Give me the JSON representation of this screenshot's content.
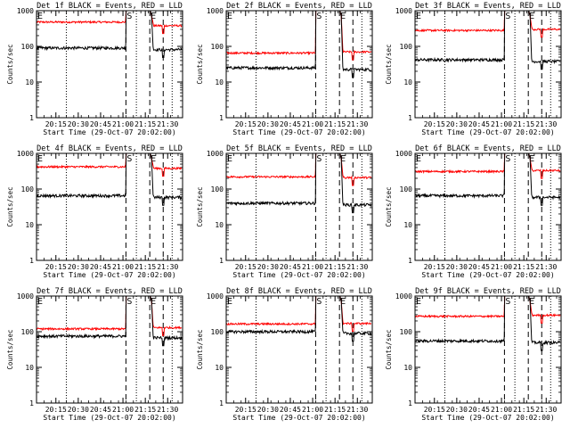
{
  "chart_data": {
    "type": "line",
    "layout": "3x3 grid",
    "x_tick_labels": [
      "20:15",
      "20:30",
      "20:45",
      "21:00",
      "21:15",
      "21:30"
    ],
    "x_range": [
      "20:02:00",
      "21:40:00"
    ],
    "y_scale": "log",
    "y_range": [
      1,
      1000
    ],
    "y_tick_labels": [
      "1",
      "10",
      "100",
      "1000"
    ],
    "ylabel": "Counts/sec",
    "xlabel": "Start Time (29-Oct-07 20:02:00)",
    "markers": [
      {
        "label": "E",
        "time": "20:02"
      },
      {
        "label": "S",
        "time": "21:02"
      },
      {
        "label": "E",
        "time": "21:18"
      }
    ],
    "dotted_lines": [
      "20:22",
      "21:09",
      "21:33"
    ],
    "dashed_lines": [
      "21:02",
      "21:18",
      "21:27"
    ],
    "series_colors": {
      "events": "#000000",
      "lld": "#ff0000"
    },
    "panels": [
      {
        "title": "Det 1f BLACK = Events, RED = LLD",
        "events": 90,
        "lld": 480,
        "lld_after": 380
      },
      {
        "title": "Det 2f BLACK = Events, RED = LLD",
        "events": 25,
        "lld": 65,
        "lld_after": 70
      },
      {
        "title": "Det 3f BLACK = Events, RED = LLD",
        "events": 42,
        "lld": 280,
        "lld_after": 300
      },
      {
        "title": "Det 4f BLACK = Events, RED = LLD",
        "events": 65,
        "lld": 420,
        "lld_after": 380
      },
      {
        "title": "Det 5f BLACK = Events, RED = LLD",
        "events": 40,
        "lld": 220,
        "lld_after": 210
      },
      {
        "title": "Det 6f BLACK = Events, RED = LLD",
        "events": 65,
        "lld": 310,
        "lld_after": 330
      },
      {
        "title": "Det 7f BLACK = Events, RED = LLD",
        "events": 75,
        "lld": 120,
        "lld_after": 130
      },
      {
        "title": "Det 8f BLACK = Events, RED = LLD",
        "events": 100,
        "lld": 165,
        "lld_after": 170
      },
      {
        "title": "Det 9f BLACK = Events, RED = LLD",
        "events": 55,
        "lld": 270,
        "lld_after": 290
      }
    ]
  }
}
